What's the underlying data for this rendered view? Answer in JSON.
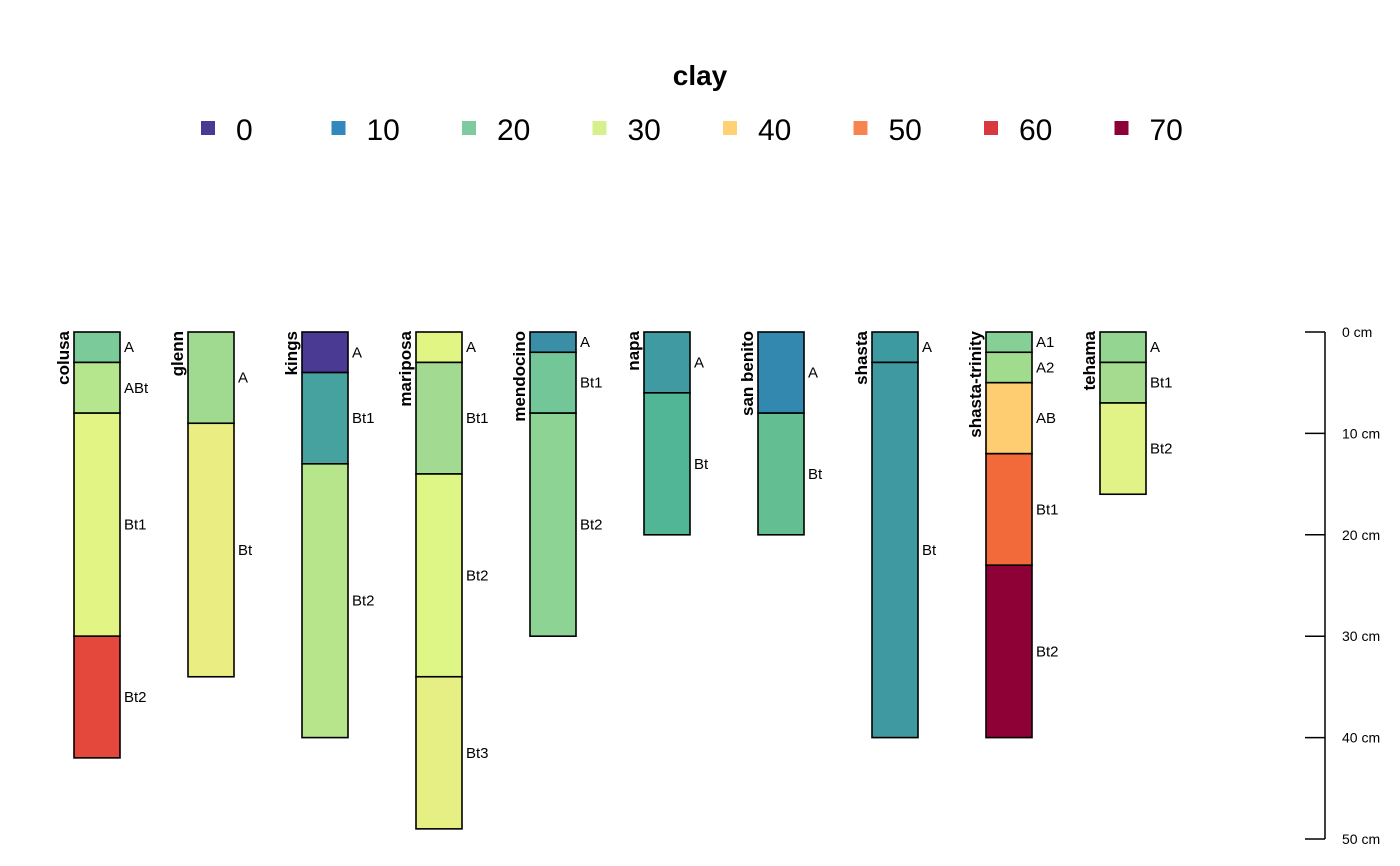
{
  "chart_data": {
    "type": "soil-profile",
    "legend": {
      "title": "clay",
      "entries": [
        {
          "label": "0",
          "color": "#4A3A93"
        },
        {
          "label": "10",
          "color": "#3288BD"
        },
        {
          "label": "20",
          "color": "#7FCA9F"
        },
        {
          "label": "30",
          "color": "#D7F08E"
        },
        {
          "label": "40",
          "color": "#FFD175"
        },
        {
          "label": "50",
          "color": "#F7844E"
        },
        {
          "label": "60",
          "color": "#D8383F"
        },
        {
          "label": "70",
          "color": "#8E0136"
        }
      ]
    },
    "depth_axis": {
      "unit": "cm",
      "range": [
        0,
        50
      ],
      "ticks": [
        {
          "value": 0,
          "label": "0 cm"
        },
        {
          "value": 10,
          "label": "10 cm"
        },
        {
          "value": 20,
          "label": "20 cm"
        },
        {
          "value": 30,
          "label": "30 cm"
        },
        {
          "value": 40,
          "label": "40 cm"
        },
        {
          "value": 50,
          "label": "50 cm"
        }
      ]
    },
    "profiles": [
      {
        "name": "colusa",
        "horizons": [
          {
            "name": "A",
            "top": 0,
            "bottom": 3,
            "color": "#7BCA9A"
          },
          {
            "name": "ABt",
            "top": 3,
            "bottom": 8,
            "color": "#B5E58C"
          },
          {
            "name": "Bt1",
            "top": 8,
            "bottom": 30,
            "color": "#E2F584"
          },
          {
            "name": "Bt2",
            "top": 30,
            "bottom": 42,
            "color": "#E4483C"
          }
        ]
      },
      {
        "name": "glenn",
        "horizons": [
          {
            "name": "A",
            "top": 0,
            "bottom": 9,
            "color": "#A0DA90"
          },
          {
            "name": "Bt",
            "top": 9,
            "bottom": 34,
            "color": "#EAED82"
          }
        ]
      },
      {
        "name": "kings",
        "horizons": [
          {
            "name": "A",
            "top": 0,
            "bottom": 4,
            "color": "#4A3A93"
          },
          {
            "name": "Bt1",
            "top": 4,
            "bottom": 13,
            "color": "#46A29F"
          },
          {
            "name": "Bt2",
            "top": 13,
            "bottom": 40,
            "color": "#B6E58C"
          }
        ]
      },
      {
        "name": "mariposa",
        "horizons": [
          {
            "name": "A",
            "top": 0,
            "bottom": 3,
            "color": "#E0F584"
          },
          {
            "name": "Bt1",
            "top": 3,
            "bottom": 14,
            "color": "#A1DA90"
          },
          {
            "name": "Bt2",
            "top": 14,
            "bottom": 34,
            "color": "#DDF686"
          },
          {
            "name": "Bt3",
            "top": 34,
            "bottom": 49,
            "color": "#E6EF84"
          }
        ]
      },
      {
        "name": "mendocino",
        "horizons": [
          {
            "name": "A",
            "top": 0,
            "bottom": 2,
            "color": "#3A8FA6"
          },
          {
            "name": "Bt1",
            "top": 2,
            "bottom": 8,
            "color": "#73C697"
          },
          {
            "name": "Bt2",
            "top": 8,
            "bottom": 30,
            "color": "#8DD393"
          }
        ]
      },
      {
        "name": "napa",
        "horizons": [
          {
            "name": "A",
            "top": 0,
            "bottom": 6,
            "color": "#3F9AA2"
          },
          {
            "name": "Bt",
            "top": 6,
            "bottom": 20,
            "color": "#50B695"
          }
        ]
      },
      {
        "name": "san benito",
        "horizons": [
          {
            "name": "A",
            "top": 0,
            "bottom": 8,
            "color": "#3288AE"
          },
          {
            "name": "Bt",
            "top": 8,
            "bottom": 20,
            "color": "#63BF91"
          }
        ]
      },
      {
        "name": "shasta",
        "horizons": [
          {
            "name": "A",
            "top": 0,
            "bottom": 3,
            "color": "#3D9AA1"
          },
          {
            "name": "Bt",
            "top": 3,
            "bottom": 40,
            "color": "#3E99A1"
          }
        ]
      },
      {
        "name": "shasta-trinity",
        "horizons": [
          {
            "name": "A1",
            "top": 0,
            "bottom": 2,
            "color": "#86CF97"
          },
          {
            "name": "A2",
            "top": 2,
            "bottom": 5,
            "color": "#A1DB8E"
          },
          {
            "name": "AB",
            "top": 5,
            "bottom": 12,
            "color": "#FECD72"
          },
          {
            "name": "Bt1",
            "top": 12,
            "bottom": 23,
            "color": "#F2693A"
          },
          {
            "name": "Bt2",
            "top": 23,
            "bottom": 40,
            "color": "#8E0136"
          }
        ]
      },
      {
        "name": "tehama",
        "horizons": [
          {
            "name": "A",
            "top": 0,
            "bottom": 3,
            "color": "#95D592"
          },
          {
            "name": "Bt1",
            "top": 3,
            "bottom": 7,
            "color": "#A4DB8E"
          },
          {
            "name": "Bt2",
            "top": 7,
            "bottom": 16,
            "color": "#E1F386"
          }
        ]
      }
    ]
  }
}
